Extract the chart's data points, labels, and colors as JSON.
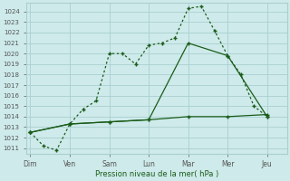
{
  "xlabel": "Pression niveau de la mer( hPa )",
  "bg_color": "#ceeaea",
  "line_color": "#1a5c1a",
  "grid_color": "#aacfcf",
  "x_labels": [
    "Dim",
    "Ven",
    "Sam",
    "Lun",
    "Mar",
    "Mer",
    "Jeu"
  ],
  "x_ticks": [
    0,
    2,
    4,
    6,
    8,
    10,
    12
  ],
  "xlim": [
    -0.2,
    13.0
  ],
  "ylim": [
    1010.5,
    1024.8
  ],
  "yticks": [
    1011,
    1012,
    1013,
    1014,
    1015,
    1016,
    1017,
    1018,
    1019,
    1020,
    1021,
    1022,
    1023,
    1024
  ],
  "line1_x": [
    0,
    0.67,
    1.33,
    2,
    2.67,
    3.33,
    4,
    4.67,
    5.33,
    6,
    6.67,
    7.33,
    8,
    8.67,
    9.33,
    10,
    10.67,
    11.33,
    12
  ],
  "line1_y": [
    1012.5,
    1011.2,
    1010.8,
    1013.3,
    1014.7,
    1015.5,
    1020.0,
    1020.0,
    1019.0,
    1020.8,
    1021.0,
    1021.5,
    1024.3,
    1024.5,
    1022.2,
    1019.8,
    1018.0,
    1015.0,
    1014.0
  ],
  "line2_x": [
    0,
    2,
    4,
    6,
    8,
    10,
    12
  ],
  "line2_y": [
    1012.5,
    1013.3,
    1013.5,
    1013.7,
    1014.0,
    1014.0,
    1014.2
  ],
  "line3_x": [
    0,
    2,
    4,
    6,
    8,
    10,
    12
  ],
  "line3_y": [
    1012.5,
    1013.3,
    1013.5,
    1013.7,
    1021.0,
    1019.8,
    1014.0
  ]
}
